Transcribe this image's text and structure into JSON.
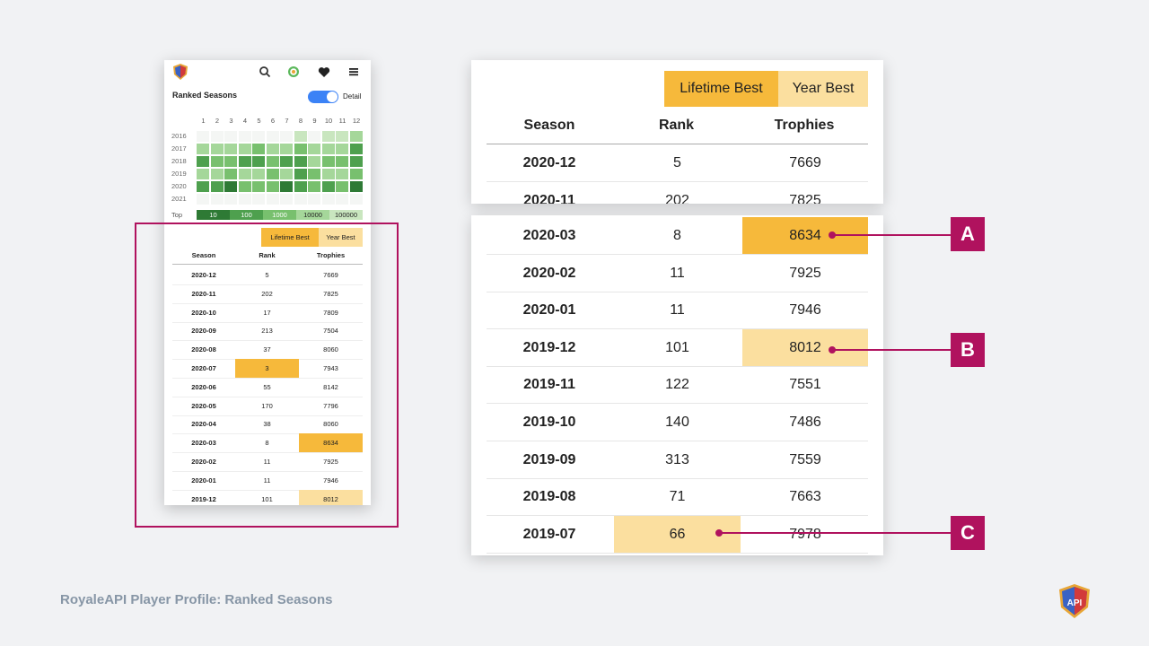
{
  "colors": {
    "lifetime_best": "#f6b93b",
    "year_best": "#fbdf9f",
    "callout": "#b0125e",
    "heat": [
      "#f4f6f4",
      "#c9e6bf",
      "#a5d79a",
      "#78c06e",
      "#4ea04e",
      "#2e7a35"
    ]
  },
  "phone": {
    "nav_icons": [
      "search-icon",
      "target-icon",
      "heart-icon",
      "menu-icon"
    ],
    "title": "Ranked Seasons",
    "detail_label": "Detail",
    "detail_on": true,
    "months": [
      "1",
      "2",
      "3",
      "4",
      "5",
      "6",
      "7",
      "8",
      "9",
      "10",
      "11",
      "12"
    ],
    "years": [
      "2016",
      "2017",
      "2018",
      "2019",
      "2020",
      "2021"
    ],
    "heatmap": [
      [
        0,
        0,
        0,
        0,
        0,
        0,
        0,
        1,
        0,
        1,
        1,
        2
      ],
      [
        2,
        2,
        2,
        2,
        3,
        2,
        2,
        3,
        2,
        2,
        2,
        4
      ],
      [
        4,
        3,
        3,
        4,
        4,
        3,
        4,
        4,
        2,
        3,
        3,
        4
      ],
      [
        2,
        2,
        3,
        2,
        2,
        3,
        2,
        4,
        3,
        2,
        2,
        3
      ],
      [
        4,
        4,
        5,
        3,
        3,
        3,
        5,
        4,
        3,
        4,
        3,
        5
      ],
      [
        0,
        0,
        0,
        0,
        0,
        0,
        0,
        0,
        0,
        0,
        0,
        0
      ]
    ],
    "top_label": "Top",
    "scale": [
      "10",
      "100",
      "1000",
      "10000",
      "100000"
    ],
    "legend": {
      "lifetime_best": "Lifetime Best",
      "year_best": "Year Best"
    },
    "headers": {
      "season": "Season",
      "rank": "Rank",
      "trophies": "Trophies"
    },
    "rows": [
      {
        "season": "2020-12",
        "rank": "5",
        "trophies": "7669",
        "rank_hl": "",
        "trophies_hl": ""
      },
      {
        "season": "2020-11",
        "rank": "202",
        "trophies": "7825",
        "rank_hl": "",
        "trophies_hl": ""
      },
      {
        "season": "2020-10",
        "rank": "17",
        "trophies": "7809",
        "rank_hl": "",
        "trophies_hl": ""
      },
      {
        "season": "2020-09",
        "rank": "213",
        "trophies": "7504",
        "rank_hl": "",
        "trophies_hl": ""
      },
      {
        "season": "2020-08",
        "rank": "37",
        "trophies": "8060",
        "rank_hl": "",
        "trophies_hl": ""
      },
      {
        "season": "2020-07",
        "rank": "3",
        "trophies": "7943",
        "rank_hl": "lifetime",
        "trophies_hl": ""
      },
      {
        "season": "2020-06",
        "rank": "55",
        "trophies": "8142",
        "rank_hl": "",
        "trophies_hl": ""
      },
      {
        "season": "2020-05",
        "rank": "170",
        "trophies": "7796",
        "rank_hl": "",
        "trophies_hl": ""
      },
      {
        "season": "2020-04",
        "rank": "38",
        "trophies": "8060",
        "rank_hl": "",
        "trophies_hl": ""
      },
      {
        "season": "2020-03",
        "rank": "8",
        "trophies": "8634",
        "rank_hl": "",
        "trophies_hl": "lifetime"
      },
      {
        "season": "2020-02",
        "rank": "11",
        "trophies": "7925",
        "rank_hl": "",
        "trophies_hl": ""
      },
      {
        "season": "2020-01",
        "rank": "11",
        "trophies": "7946",
        "rank_hl": "",
        "trophies_hl": ""
      },
      {
        "season": "2019-12",
        "rank": "101",
        "trophies": "8012",
        "rank_hl": "",
        "trophies_hl": "year"
      }
    ]
  },
  "zoom_top": {
    "legend": {
      "lifetime_best": "Lifetime Best",
      "year_best": "Year Best"
    },
    "headers": {
      "season": "Season",
      "rank": "Rank",
      "trophies": "Trophies"
    },
    "rows": [
      {
        "season": "2020-12",
        "rank": "5",
        "trophies": "7669",
        "rank_hl": "",
        "trophies_hl": ""
      },
      {
        "season": "2020-11",
        "rank": "202",
        "trophies": "7825",
        "rank_hl": "",
        "trophies_hl": ""
      }
    ]
  },
  "zoom_bottom": {
    "rows": [
      {
        "season": "2020-03",
        "rank": "8",
        "trophies": "8634",
        "rank_hl": "",
        "trophies_hl": "lifetime"
      },
      {
        "season": "2020-02",
        "rank": "11",
        "trophies": "7925",
        "rank_hl": "",
        "trophies_hl": ""
      },
      {
        "season": "2020-01",
        "rank": "11",
        "trophies": "7946",
        "rank_hl": "",
        "trophies_hl": ""
      },
      {
        "season": "2019-12",
        "rank": "101",
        "trophies": "8012",
        "rank_hl": "",
        "trophies_hl": "year"
      },
      {
        "season": "2019-11",
        "rank": "122",
        "trophies": "7551",
        "rank_hl": "",
        "trophies_hl": ""
      },
      {
        "season": "2019-10",
        "rank": "140",
        "trophies": "7486",
        "rank_hl": "",
        "trophies_hl": ""
      },
      {
        "season": "2019-09",
        "rank": "313",
        "trophies": "7559",
        "rank_hl": "",
        "trophies_hl": ""
      },
      {
        "season": "2019-08",
        "rank": "71",
        "trophies": "7663",
        "rank_hl": "",
        "trophies_hl": ""
      },
      {
        "season": "2019-07",
        "rank": "66",
        "trophies": "7978",
        "rank_hl": "year",
        "trophies_hl": ""
      }
    ]
  },
  "callouts": [
    "A",
    "B",
    "C"
  ],
  "caption": "RoyaleAPI Player Profile: Ranked Seasons",
  "logo": {
    "icon": "royaleapi-shield-logo",
    "text": "API"
  }
}
